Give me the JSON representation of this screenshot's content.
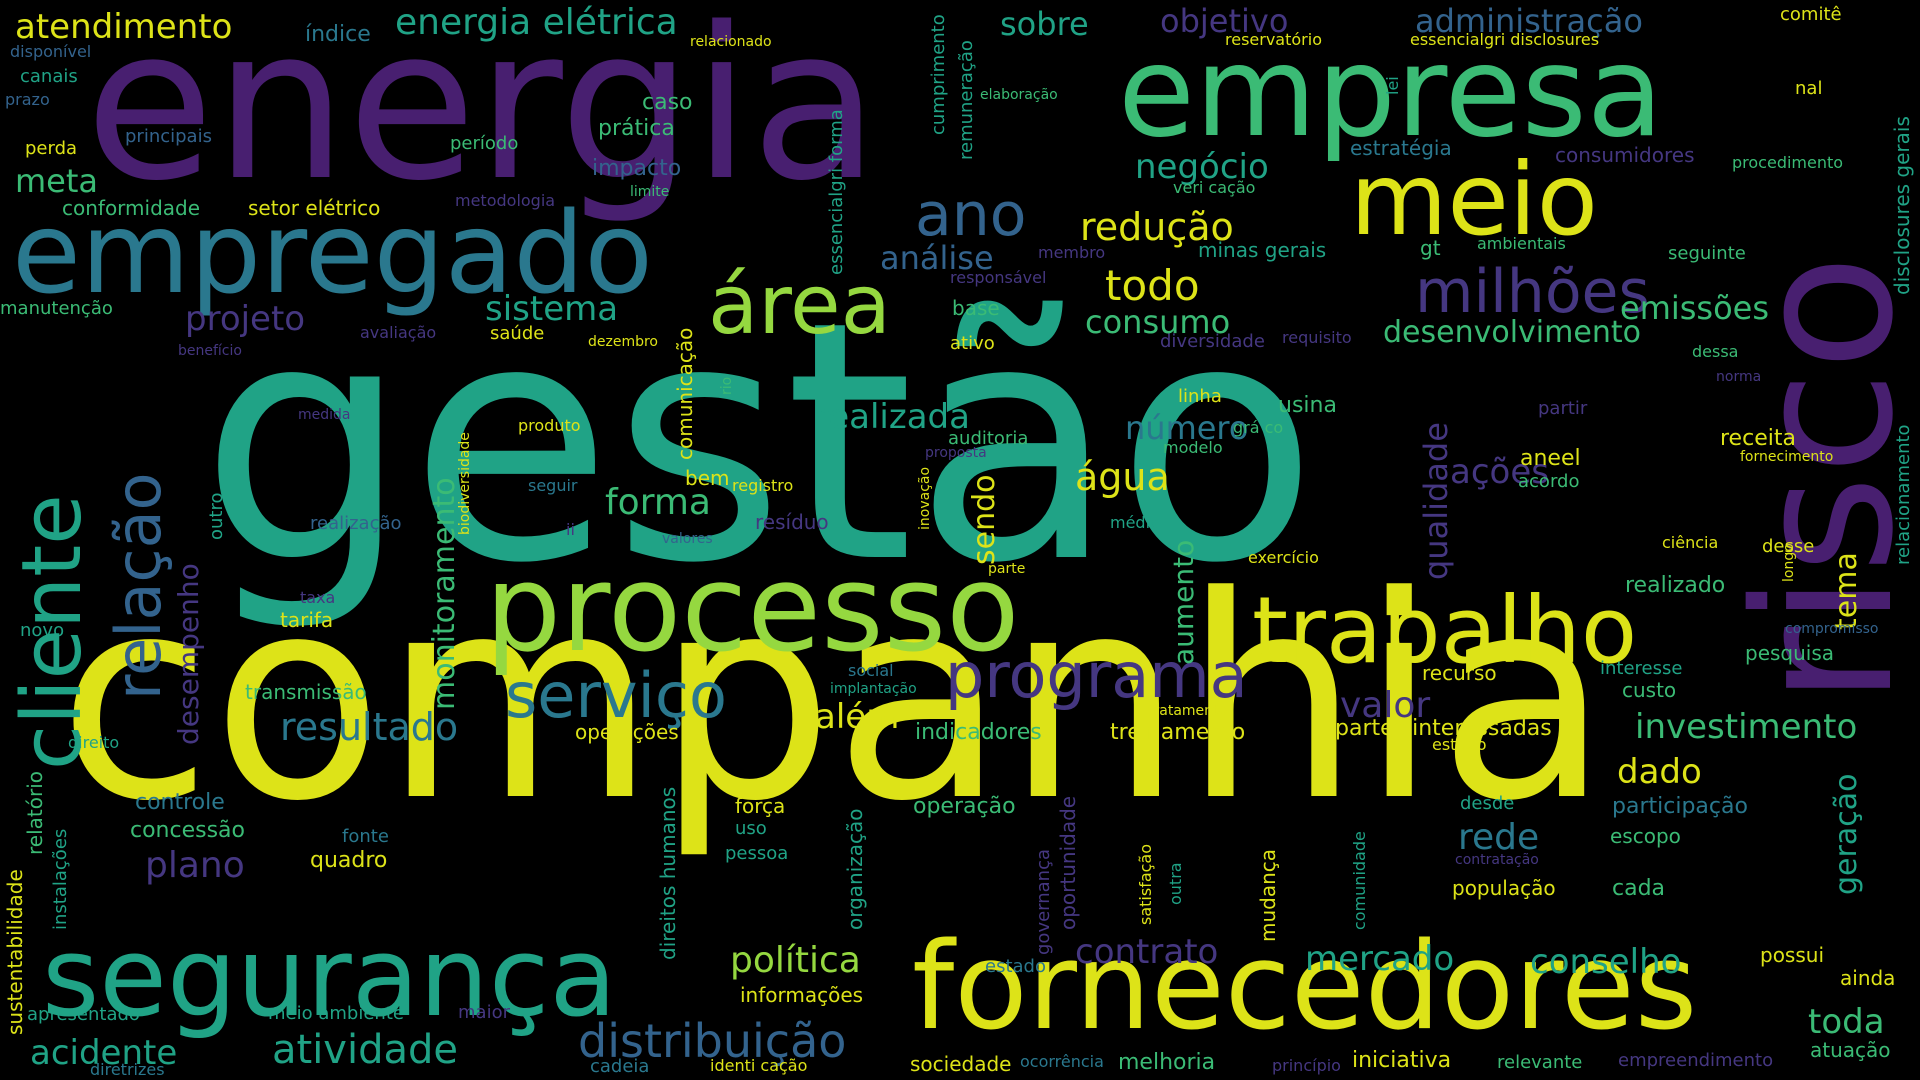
{
  "palette": {
    "yellow": "#dde318",
    "lime": "#95d840",
    "green": "#3bbb75",
    "teal": "#20a386",
    "cyan": "#2a788e",
    "blue": "#33638d",
    "indigo": "#453781",
    "purple": "#481f70",
    "background": "#000000"
  },
  "words": [
    {
      "text": "gestão",
      "color": "teal"
    },
    {
      "text": "companhia",
      "color": "yellow"
    },
    {
      "text": "energia",
      "color": "purple"
    },
    {
      "text": "risco",
      "color": "purple"
    },
    {
      "text": "empresa",
      "color": "green"
    },
    {
      "text": "empregado",
      "color": "cyan"
    },
    {
      "text": "processo",
      "color": "lime"
    },
    {
      "text": "fornecedores",
      "color": "yellow"
    },
    {
      "text": "segurança",
      "color": "teal"
    },
    {
      "text": "meio",
      "color": "yellow"
    },
    {
      "text": "trabalho",
      "color": "yellow"
    },
    {
      "text": "cliente",
      "color": "teal"
    },
    {
      "text": "área",
      "color": "lime"
    },
    {
      "text": "programa",
      "color": "indigo"
    },
    {
      "text": "relação",
      "color": "blue"
    },
    {
      "text": "serviço",
      "color": "cyan"
    },
    {
      "text": "milhões",
      "color": "indigo"
    },
    {
      "text": "ano",
      "color": "blue"
    },
    {
      "text": "distribuição",
      "color": "blue"
    },
    {
      "text": "energia elétrica",
      "color": "teal"
    },
    {
      "text": "atendimento",
      "color": "yellow"
    },
    {
      "text": "objetivo",
      "color": "indigo"
    },
    {
      "text": "administração",
      "color": "blue"
    },
    {
      "text": "sobre",
      "color": "teal"
    },
    {
      "text": "negócio",
      "color": "teal"
    },
    {
      "text": "redução",
      "color": "yellow"
    },
    {
      "text": "todo",
      "color": "yellow"
    },
    {
      "text": "consumo",
      "color": "green"
    },
    {
      "text": "desenvolvimento",
      "color": "green"
    },
    {
      "text": "emissões",
      "color": "green"
    },
    {
      "text": "sistema",
      "color": "teal"
    },
    {
      "text": "projeto",
      "color": "indigo"
    },
    {
      "text": "análise",
      "color": "blue"
    },
    {
      "text": "meta",
      "color": "green"
    },
    {
      "text": "realizada",
      "color": "teal"
    },
    {
      "text": "número",
      "color": "cyan"
    },
    {
      "text": "água",
      "color": "yellow"
    },
    {
      "text": "forma",
      "color": "green"
    },
    {
      "text": "ações",
      "color": "indigo"
    },
    {
      "text": "resultado",
      "color": "cyan"
    },
    {
      "text": "além",
      "color": "yellow"
    },
    {
      "text": "valor",
      "color": "indigo"
    },
    {
      "text": "investimento",
      "color": "green"
    },
    {
      "text": "dado",
      "color": "yellow"
    },
    {
      "text": "rede",
      "color": "cyan"
    },
    {
      "text": "plano",
      "color": "indigo"
    },
    {
      "text": "política",
      "color": "lime"
    },
    {
      "text": "contrato",
      "color": "indigo"
    },
    {
      "text": "mercado",
      "color": "teal"
    },
    {
      "text": "conselho",
      "color": "teal"
    },
    {
      "text": "atividade",
      "color": "teal"
    },
    {
      "text": "acidente",
      "color": "teal"
    },
    {
      "text": "toda",
      "color": "green"
    },
    {
      "text": "monitoramento",
      "color": "green"
    },
    {
      "text": "qualidade",
      "color": "indigo"
    },
    {
      "text": "tema",
      "color": "yellow"
    },
    {
      "text": "geração",
      "color": "teal"
    },
    {
      "text": "desempenho",
      "color": "indigo"
    },
    {
      "text": "sendo",
      "color": "yellow"
    },
    {
      "text": "aumento",
      "color": "green"
    },
    {
      "text": "operações",
      "color": "yellow"
    },
    {
      "text": "indicadores",
      "color": "green"
    },
    {
      "text": "treinamento",
      "color": "yellow"
    },
    {
      "text": "partes interessadas",
      "color": "yellow"
    },
    {
      "text": "participação",
      "color": "cyan"
    },
    {
      "text": "operação",
      "color": "green"
    },
    {
      "text": "controle",
      "color": "cyan"
    },
    {
      "text": "concessão",
      "color": "green"
    },
    {
      "text": "quadro",
      "color": "yellow"
    },
    {
      "text": "transmissão",
      "color": "green"
    },
    {
      "text": "tarifa",
      "color": "yellow"
    },
    {
      "text": "informações",
      "color": "yellow"
    },
    {
      "text": "receita",
      "color": "yellow"
    },
    {
      "text": "aneel",
      "color": "yellow"
    },
    {
      "text": "realizado",
      "color": "green"
    },
    {
      "text": "pesquisa",
      "color": "green"
    },
    {
      "text": "custo",
      "color": "green"
    },
    {
      "text": "recurso",
      "color": "yellow"
    },
    {
      "text": "cada",
      "color": "green"
    },
    {
      "text": "escopo",
      "color": "green"
    },
    {
      "text": "população",
      "color": "yellow"
    },
    {
      "text": "possui",
      "color": "yellow"
    },
    {
      "text": "ainda",
      "color": "yellow"
    },
    {
      "text": "atuação",
      "color": "green"
    },
    {
      "text": "iniciativa",
      "color": "yellow"
    },
    {
      "text": "relevante",
      "color": "green"
    },
    {
      "text": "melhoria",
      "color": "green"
    },
    {
      "text": "sociedade",
      "color": "yellow"
    },
    {
      "text": "empreendimento",
      "color": "indigo"
    },
    {
      "text": "cadeia",
      "color": "cyan"
    },
    {
      "text": "identi cação",
      "color": "yellow"
    },
    {
      "text": "diretrizes",
      "color": "cyan"
    },
    {
      "text": "apresentado",
      "color": "teal"
    },
    {
      "text": "meio ambiente",
      "color": "teal"
    },
    {
      "text": "maior",
      "color": "indigo"
    },
    {
      "text": "estado",
      "color": "cyan"
    },
    {
      "text": "ocorrência",
      "color": "cyan"
    },
    {
      "text": "princípio",
      "color": "indigo"
    },
    {
      "text": "índice",
      "color": "cyan"
    },
    {
      "text": "disponível",
      "color": "blue"
    },
    {
      "text": "canais",
      "color": "teal"
    },
    {
      "text": "prazo",
      "color": "blue"
    },
    {
      "text": "perda",
      "color": "yellow"
    },
    {
      "text": "principais",
      "color": "blue"
    },
    {
      "text": "período",
      "color": "green"
    },
    {
      "text": "conformidade",
      "color": "green"
    },
    {
      "text": "setor elétrico",
      "color": "yellow"
    },
    {
      "text": "metodologia",
      "color": "indigo"
    },
    {
      "text": "caso",
      "color": "green"
    },
    {
      "text": "prática",
      "color": "green"
    },
    {
      "text": "impacto",
      "color": "blue"
    },
    {
      "text": "limite",
      "color": "green"
    },
    {
      "text": "relacionado",
      "color": "yellow"
    },
    {
      "text": "reservatório",
      "color": "yellow"
    },
    {
      "text": "essencialgri disclosures",
      "color": "yellow"
    },
    {
      "text": "comitê",
      "color": "yellow"
    },
    {
      "text": "nal",
      "color": "yellow"
    },
    {
      "text": "elaboração",
      "color": "green"
    },
    {
      "text": "estratégia",
      "color": "cyan"
    },
    {
      "text": "consumidores",
      "color": "indigo"
    },
    {
      "text": "procedimento",
      "color": "green"
    },
    {
      "text": "veri cação",
      "color": "green"
    },
    {
      "text": "minas gerais",
      "color": "teal"
    },
    {
      "text": "gt",
      "color": "green"
    },
    {
      "text": "ambientais",
      "color": "green"
    },
    {
      "text": "seguinte",
      "color": "green"
    },
    {
      "text": "membro",
      "color": "indigo"
    },
    {
      "text": "responsável",
      "color": "indigo"
    },
    {
      "text": "base",
      "color": "green"
    },
    {
      "text": "ativo",
      "color": "yellow"
    },
    {
      "text": "diversidade",
      "color": "indigo"
    },
    {
      "text": "requisito",
      "color": "indigo"
    },
    {
      "text": "dessa",
      "color": "green"
    },
    {
      "text": "norma",
      "color": "indigo"
    },
    {
      "text": "manutenção",
      "color": "green"
    },
    {
      "text": "avaliação",
      "color": "indigo"
    },
    {
      "text": "saúde",
      "color": "yellow"
    },
    {
      "text": "dezembro",
      "color": "yellow"
    },
    {
      "text": "benefício",
      "color": "indigo"
    },
    {
      "text": "medida",
      "color": "indigo"
    },
    {
      "text": "produto",
      "color": "yellow"
    },
    {
      "text": "linha",
      "color": "yellow"
    },
    {
      "text": "usina",
      "color": "green"
    },
    {
      "text": "grá co",
      "color": "green"
    },
    {
      "text": "partir",
      "color": "indigo"
    },
    {
      "text": "auditoria",
      "color": "green"
    },
    {
      "text": "proposta",
      "color": "indigo"
    },
    {
      "text": "modelo",
      "color": "green"
    },
    {
      "text": "fornecimento",
      "color": "yellow"
    },
    {
      "text": "bem",
      "color": "yellow"
    },
    {
      "text": "registro",
      "color": "yellow"
    },
    {
      "text": "seguir",
      "color": "cyan"
    },
    {
      "text": "acordo",
      "color": "green"
    },
    {
      "text": "realização",
      "color": "blue"
    },
    {
      "text": "ii",
      "color": "indigo"
    },
    {
      "text": "valores",
      "color": "blue"
    },
    {
      "text": "resíduo",
      "color": "indigo"
    },
    {
      "text": "média",
      "color": "teal"
    },
    {
      "text": "ciência",
      "color": "yellow"
    },
    {
      "text": "desse",
      "color": "yellow"
    },
    {
      "text": "parte",
      "color": "yellow"
    },
    {
      "text": "exercício",
      "color": "yellow"
    },
    {
      "text": "taxa",
      "color": "indigo"
    },
    {
      "text": "novo",
      "color": "teal"
    },
    {
      "text": "social",
      "color": "cyan"
    },
    {
      "text": "implantação",
      "color": "teal"
    },
    {
      "text": "interesse",
      "color": "teal"
    },
    {
      "text": "compromisso",
      "color": "blue"
    },
    {
      "text": "direito",
      "color": "teal"
    },
    {
      "text": "tratamento",
      "color": "yellow"
    },
    {
      "text": "estudo",
      "color": "yellow"
    },
    {
      "text": "força",
      "color": "yellow"
    },
    {
      "text": "uso",
      "color": "teal"
    },
    {
      "text": "pessoa",
      "color": "teal"
    },
    {
      "text": "fonte",
      "color": "cyan"
    },
    {
      "text": "desde",
      "color": "teal"
    },
    {
      "text": "contratação",
      "color": "indigo"
    },
    {
      "text": "outra",
      "color": "teal"
    },
    {
      "text": "cumprimento",
      "color": "teal"
    },
    {
      "text": "remuneração",
      "color": "teal"
    },
    {
      "text": "lei",
      "color": "teal"
    },
    {
      "text": "essencialgri forma",
      "color": "teal"
    },
    {
      "text": "disclosures gerais",
      "color": "teal"
    },
    {
      "text": "relacionamento",
      "color": "teal"
    },
    {
      "text": "longo",
      "color": "yellow"
    },
    {
      "text": "comunicação",
      "color": "yellow"
    },
    {
      "text": "rio",
      "color": "green"
    },
    {
      "text": "biodiversidade",
      "color": "yellow"
    },
    {
      "text": "outro",
      "color": "teal"
    },
    {
      "text": "inovação",
      "color": "yellow"
    },
    {
      "text": "direitos humanos",
      "color": "teal"
    },
    {
      "text": "organização",
      "color": "teal"
    },
    {
      "text": "oportunidade",
      "color": "indigo"
    },
    {
      "text": "governança",
      "color": "indigo"
    },
    {
      "text": "satisfação",
      "color": "yellow"
    },
    {
      "text": "mudança",
      "color": "yellow"
    },
    {
      "text": "comunidade",
      "color": "teal"
    },
    {
      "text": "sustentabilidade",
      "color": "yellow"
    },
    {
      "text": "relatório",
      "color": "green"
    },
    {
      "text": "instalações",
      "color": "teal"
    }
  ]
}
